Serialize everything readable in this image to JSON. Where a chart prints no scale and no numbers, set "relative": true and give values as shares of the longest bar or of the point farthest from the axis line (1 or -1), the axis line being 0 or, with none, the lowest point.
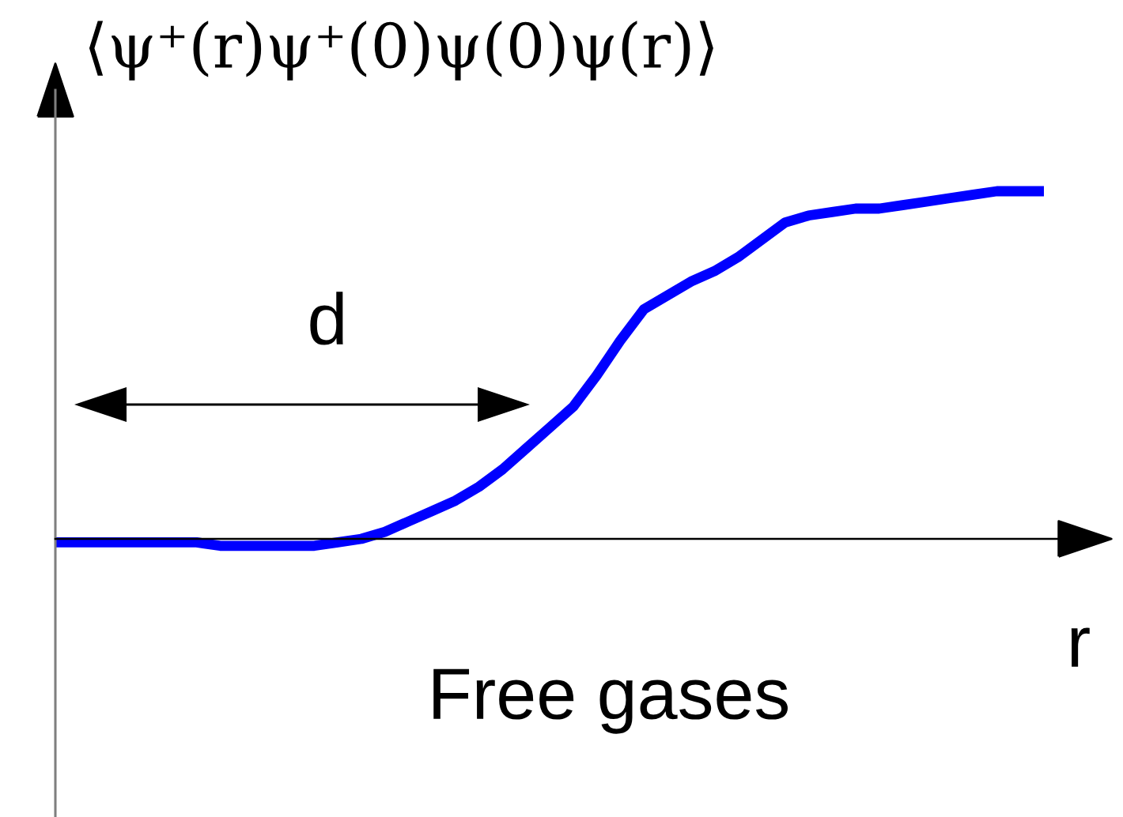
{
  "chart_data": {
    "type": "line",
    "relative": true,
    "ylabel": "⟨ψ⁺(r)ψ⁺(0)ψ(0)ψ(r)⟩",
    "xlabel": "r",
    "annotations": [
      "d",
      "Free gases"
    ],
    "line_style": "solid",
    "categories": [
      null,
      null,
      null,
      null,
      null,
      null,
      null,
      null,
      null,
      null,
      null,
      null,
      null,
      null,
      null,
      null,
      null,
      null,
      null,
      null,
      null,
      null,
      null,
      null,
      null,
      null,
      null,
      null,
      null,
      null,
      null,
      null,
      null,
      null,
      null,
      null,
      null,
      null,
      null,
      null,
      null,
      null,
      null
    ],
    "series": [
      {
        "color": "#0000ff",
        "values": [
          -0.01,
          -0.01,
          -0.01,
          -0.01,
          -0.01,
          -0.01,
          -0.01,
          -0.02,
          -0.02,
          -0.02,
          -0.02,
          -0.02,
          -0.01,
          0.0,
          0.02,
          0.05,
          0.08,
          0.11,
          0.15,
          0.2,
          0.26,
          0.32,
          0.38,
          0.47,
          0.57,
          0.66,
          0.7,
          0.74,
          0.77,
          0.81,
          0.86,
          0.91,
          0.93,
          0.94,
          0.95,
          0.95,
          0.96,
          0.97,
          0.98,
          0.99,
          1.0,
          1.0,
          1.0
        ]
      }
    ]
  }
}
